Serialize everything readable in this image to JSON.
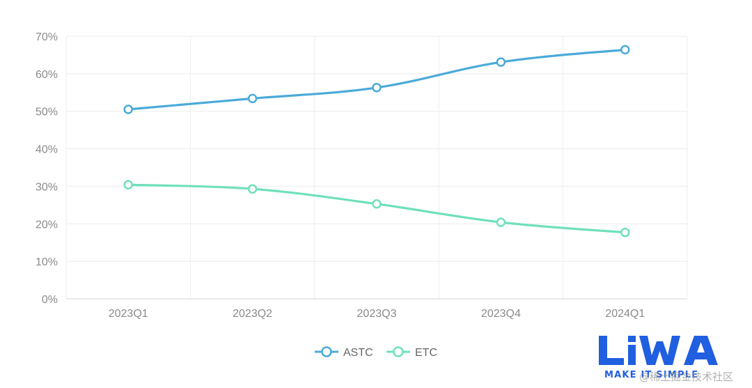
{
  "chart_data": {
    "type": "line",
    "categories": [
      "2023Q1",
      "2023Q2",
      "2023Q3",
      "2023Q4",
      "2024Q1"
    ],
    "series": [
      {
        "name": "ASTC",
        "color": "#4aaad8",
        "values": [
          50.5,
          53.4,
          56.3,
          63.1,
          66.4
        ]
      },
      {
        "name": "ETC",
        "color": "#6fe0b9",
        "values": [
          30.4,
          29.3,
          25.3,
          20.4,
          17.7
        ]
      }
    ],
    "ylim": [
      0,
      70
    ],
    "yticks": [
      "0%",
      "10%",
      "20%",
      "30%",
      "40%",
      "50%",
      "60%",
      "70%"
    ],
    "ytick_values": [
      0,
      10,
      20,
      30,
      40,
      50,
      60,
      70
    ],
    "y_unit": "%",
    "grid": true,
    "legend_position": "bottom-center",
    "title": "",
    "xlabel": "",
    "ylabel": ""
  },
  "branding": {
    "logo_text": "LiWA",
    "tagline": "MAKE IT SIMPLE",
    "watermark": "@稀土掘金技术社区",
    "logo_color": "#1f5fe0"
  }
}
